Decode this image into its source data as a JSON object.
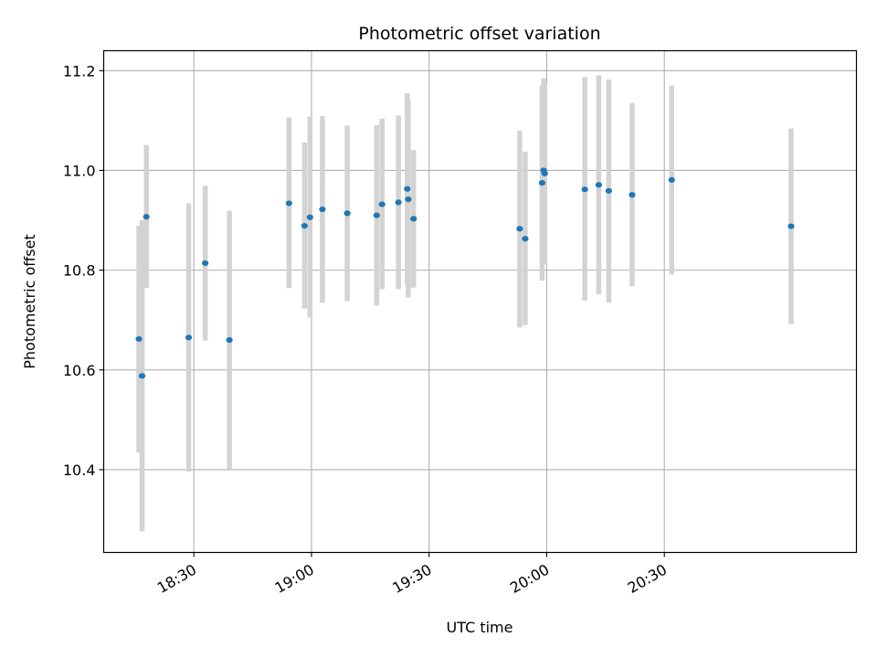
{
  "chart_data": {
    "type": "scatter",
    "title": "Photometric offset variation",
    "xlabel": "UTC time",
    "ylabel": "Photometric offset",
    "xlim": [
      "18:07",
      "21:19"
    ],
    "ylim": [
      10.234,
      11.24
    ],
    "x_ticks": [
      "18:30",
      "19:00",
      "19:30",
      "20:00",
      "20:30"
    ],
    "y_ticks": [
      "10.4",
      "10.6",
      "10.8",
      "11.0",
      "11.2"
    ],
    "grid": true,
    "point_color": "#1f77b4",
    "errorbar_color": "#d3d3d3",
    "points": [
      {
        "t": "18:15:59",
        "y": 10.662,
        "ylo": 10.434,
        "yhi": 10.889
      },
      {
        "t": "18:16:48",
        "y": 10.588,
        "ylo": 10.276,
        "yhi": 10.9
      },
      {
        "t": "18:17:53",
        "y": 10.907,
        "ylo": 10.764,
        "yhi": 11.051
      },
      {
        "t": "18:28:41",
        "y": 10.665,
        "ylo": 10.396,
        "yhi": 10.934
      },
      {
        "t": "18:32:54",
        "y": 10.814,
        "ylo": 10.659,
        "yhi": 10.969
      },
      {
        "t": "18:39:04",
        "y": 10.66,
        "ylo": 10.401,
        "yhi": 10.919
      },
      {
        "t": "18:54:16",
        "y": 10.934,
        "ylo": 10.764,
        "yhi": 11.106
      },
      {
        "t": "18:58:14",
        "y": 10.889,
        "ylo": 10.723,
        "yhi": 11.056
      },
      {
        "t": "18:59:37",
        "y": 10.906,
        "ylo": 10.705,
        "yhi": 11.108
      },
      {
        "t": "19:02:47",
        "y": 10.922,
        "ylo": 10.735,
        "yhi": 11.109
      },
      {
        "t": "19:09:07",
        "y": 10.914,
        "ylo": 10.738,
        "yhi": 11.09
      },
      {
        "t": "19:16:38",
        "y": 10.91,
        "ylo": 10.729,
        "yhi": 11.091
      },
      {
        "t": "19:18:00",
        "y": 10.932,
        "ylo": 10.762,
        "yhi": 11.104
      },
      {
        "t": "19:22:11",
        "y": 10.936,
        "ylo": 10.762,
        "yhi": 11.11
      },
      {
        "t": "19:24:26",
        "y": 10.963,
        "ylo": 10.77,
        "yhi": 11.155
      },
      {
        "t": "19:24:41",
        "y": 10.942,
        "ylo": 10.745,
        "yhi": 11.139
      },
      {
        "t": "19:26:02",
        "y": 10.903,
        "ylo": 10.765,
        "yhi": 11.041
      },
      {
        "t": "19:53:07",
        "y": 10.883,
        "ylo": 10.685,
        "yhi": 11.08
      },
      {
        "t": "19:54:31",
        "y": 10.863,
        "ylo": 10.69,
        "yhi": 11.038
      },
      {
        "t": "19:58:50",
        "y": 10.975,
        "ylo": 10.779,
        "yhi": 11.17
      },
      {
        "t": "19:59:13",
        "y": 11.0,
        "ylo": 10.815,
        "yhi": 11.185
      },
      {
        "t": "19:59:29",
        "y": 10.994,
        "ylo": 10.812,
        "yhi": 11.176
      },
      {
        "t": "20:09:43",
        "y": 10.962,
        "ylo": 10.739,
        "yhi": 11.187
      },
      {
        "t": "20:13:16",
        "y": 10.971,
        "ylo": 10.752,
        "yhi": 11.191
      },
      {
        "t": "20:15:50",
        "y": 10.959,
        "ylo": 10.735,
        "yhi": 11.182
      },
      {
        "t": "20:21:47",
        "y": 10.951,
        "ylo": 10.768,
        "yhi": 11.135
      },
      {
        "t": "20:31:53",
        "y": 10.981,
        "ylo": 10.791,
        "yhi": 11.17
      },
      {
        "t": "21:02:20",
        "y": 10.888,
        "ylo": 10.692,
        "yhi": 11.084
      }
    ]
  }
}
